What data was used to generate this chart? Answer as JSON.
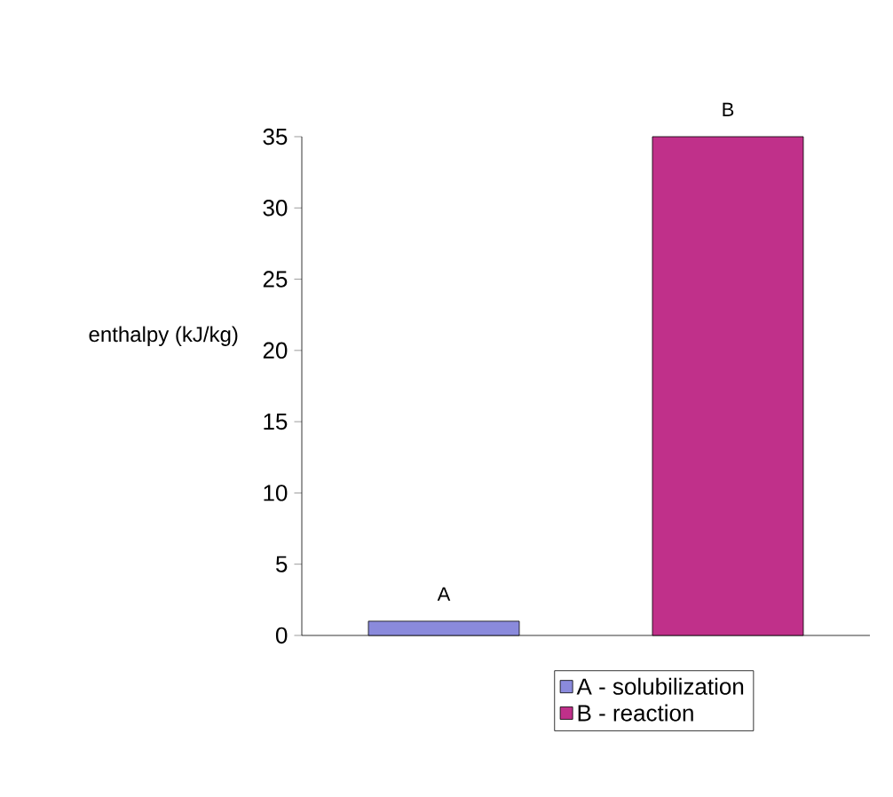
{
  "chart_data": {
    "type": "bar",
    "ylabel": "enthalpy (kJ/kg)",
    "categories": [
      "A",
      "B"
    ],
    "series": [
      {
        "name": "A - solubilization",
        "color": "#8a8adc",
        "values": [
          1,
          null
        ]
      },
      {
        "name": "B - reaction",
        "color": "#c0308a",
        "values": [
          null,
          35
        ]
      }
    ],
    "ylim": [
      0,
      35
    ],
    "yticks": [
      0,
      5,
      10,
      15,
      20,
      25,
      30,
      35
    ],
    "legend": "bottom",
    "grid": false
  }
}
